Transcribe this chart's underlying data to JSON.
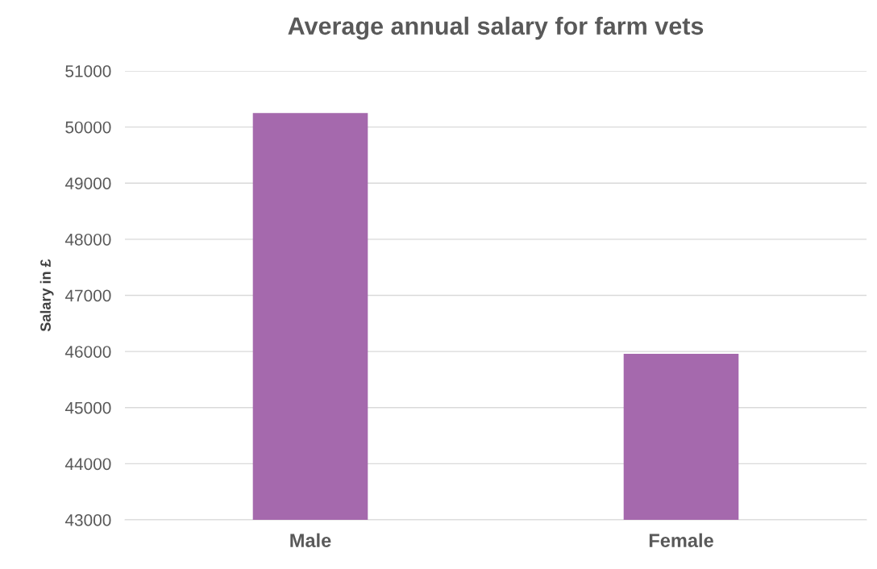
{
  "chart_data": {
    "type": "bar",
    "title": "Average annual salary for farm vets",
    "ylabel": "Salary in £",
    "categories": [
      "Male",
      "Female"
    ],
    "values": [
      50250,
      45960
    ],
    "color": "#a569ad",
    "ylim": [
      43000,
      51000
    ],
    "yticks": [
      43000,
      44000,
      45000,
      46000,
      47000,
      48000,
      49000,
      50000,
      51000
    ],
    "grid": "y"
  }
}
